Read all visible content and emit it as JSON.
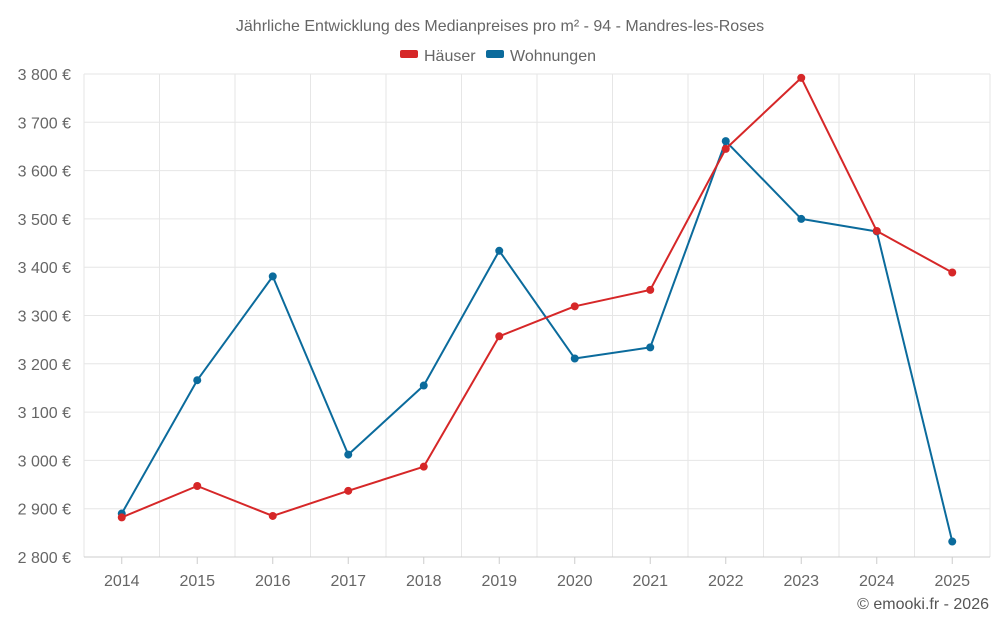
{
  "chart_data": {
    "type": "line",
    "title": "Jährliche Entwicklung des Medianpreises pro m² - 94 - Mandres-les-Roses",
    "categories": [
      "2014",
      "2015",
      "2016",
      "2017",
      "2018",
      "2019",
      "2020",
      "2021",
      "2022",
      "2023",
      "2024",
      "2025"
    ],
    "series": [
      {
        "name": "Häuser",
        "color": "#d62728",
        "values": [
          2882,
          2947,
          2885,
          2937,
          2987,
          3257,
          3319,
          3353,
          3645,
          3792,
          3475,
          3389
        ]
      },
      {
        "name": "Wohnungen",
        "color": "#0b6b9c",
        "values": [
          2890,
          3166,
          3381,
          3012,
          3155,
          3434,
          3211,
          3234,
          3661,
          3500,
          3474,
          2832
        ]
      }
    ],
    "ylim": [
      2800,
      3800
    ],
    "yticks": [
      2800,
      2900,
      3000,
      3100,
      3200,
      3300,
      3400,
      3500,
      3600,
      3700,
      3800
    ],
    "ytick_labels": [
      "2 800 €",
      "2 900 €",
      "3 000 €",
      "3 100 €",
      "3 200 €",
      "3 300 €",
      "3 400 €",
      "3 500 €",
      "3 600 €",
      "3 700 €",
      "3 800 €"
    ],
    "xlabel": "",
    "ylabel": "",
    "grid": true,
    "legend_position": "top-center"
  },
  "credit": "© emooki.fr - 2026"
}
